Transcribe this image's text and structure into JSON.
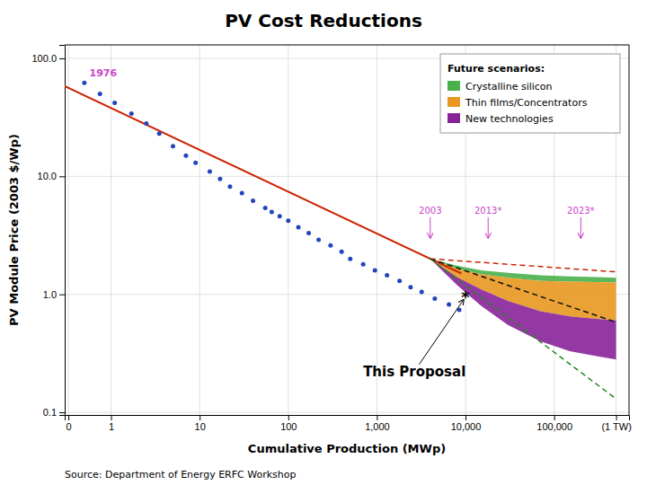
{
  "chart_data": {
    "type": "scatter",
    "title": "PV  Cost  Reductions",
    "source": "Source:  Department of Energy ERFC Workshop",
    "x_label": "Cumulative Production (MWp)",
    "y_label": "PV Module Price (2003 $/Wp)",
    "log": true,
    "grid": true,
    "legend": "upper right",
    "legend_title": "Future scenarios:",
    "xlim": [
      0.3,
      700000
    ],
    "ylim": [
      0.095,
      130
    ],
    "xticks": [
      {
        "value": 0.33,
        "label": "0"
      },
      1,
      10,
      100,
      {
        "value": 1000,
        "label": "1,000"
      },
      {
        "value": 10000,
        "label": "10,000"
      },
      {
        "value": 100000,
        "label": "100,000"
      },
      {
        "value": 500000,
        "label": "(1 TW)"
      }
    ],
    "yticks": [
      0.1,
      {
        "value": 1.0,
        "label": "1.0"
      },
      {
        "value": 10.0,
        "label": "10.0"
      },
      {
        "value": 100.0,
        "label": "100.0"
      }
    ],
    "series": [
      {
        "type": "scatter",
        "color": "#2244bb",
        "x": [
          0.5,
          0.75,
          1.1,
          1.7,
          2.5,
          3.5,
          5,
          7,
          9,
          13,
          17,
          22,
          30,
          40,
          55,
          65,
          80,
          100,
          130,
          170,
          220,
          300,
          400,
          500,
          700,
          950,
          1300,
          1800,
          2400,
          3200,
          4500,
          6500,
          8500
        ],
        "values": [
          62,
          50,
          42,
          34,
          28,
          23,
          18,
          15,
          13,
          11,
          9.5,
          8.2,
          7.2,
          6.2,
          5.4,
          5.0,
          4.6,
          4.2,
          3.7,
          3.3,
          2.9,
          2.6,
          2.3,
          2.0,
          1.8,
          1.6,
          1.45,
          1.3,
          1.15,
          1.05,
          0.92,
          0.82,
          0.74
        ]
      },
      {
        "type": "line",
        "color": "#cc2200",
        "x": [
          0.3,
          9000
        ],
        "values": [
          58.265,
          1.4998
        ]
      },
      {
        "type": "area",
        "name": "Crystalline silicon",
        "color": "#4ab04a",
        "x": [
          4000,
          8000,
          15000,
          30000,
          70000,
          150000,
          300000,
          500000
        ],
        "lower": [
          2.0,
          1.65,
          1.48,
          1.38,
          1.3,
          1.28,
          1.27,
          1.26
        ],
        "upper": [
          2.0,
          1.75,
          1.6,
          1.52,
          1.45,
          1.42,
          1.4,
          1.38
        ]
      },
      {
        "type": "area",
        "name": "Thin films/Concentrators",
        "color": "#e89820",
        "x": [
          4000,
          8000,
          15000,
          30000,
          70000,
          150000,
          300000,
          500000
        ],
        "lower": [
          2.0,
          1.4,
          1.1,
          0.88,
          0.72,
          0.65,
          0.62,
          0.6
        ],
        "upper": [
          2.0,
          1.65,
          1.48,
          1.38,
          1.3,
          1.28,
          1.27,
          1.26
        ]
      },
      {
        "type": "area",
        "name": "New technologies",
        "color": "#882299",
        "x": [
          4000,
          8000,
          15000,
          30000,
          70000,
          150000,
          300000,
          500000
        ],
        "lower": [
          2.0,
          1.2,
          0.8,
          0.55,
          0.4,
          0.33,
          0.3,
          0.28
        ],
        "upper": [
          2.0,
          1.4,
          1.1,
          0.88,
          0.72,
          0.65,
          0.62,
          0.6
        ]
      },
      {
        "type": "line",
        "line_style": "dashed",
        "color": "#cc2200",
        "x": [
          4000,
          500000
        ],
        "values": [
          2.0,
          1.55
        ]
      },
      {
        "type": "line",
        "line_style": "dashed",
        "color": "#111111",
        "x": [
          4000,
          500000
        ],
        "values": [
          2.0,
          0.58
        ]
      },
      {
        "type": "line",
        "line_style": "dashed",
        "color": "#228822",
        "x": [
          4000,
          500000
        ],
        "values": [
          2.0,
          0.13
        ]
      }
    ],
    "annotations": [
      {
        "text": "1976",
        "x": 0.52,
        "y": 70,
        "color": "#cc44cc"
      },
      {
        "text": "2003",
        "x": 4000,
        "y": 4.5,
        "arrow_y": 3.0,
        "color": "#cc44cc"
      },
      {
        "text": "2013*",
        "x": 18000,
        "y": 4.5,
        "arrow_y": 3.0,
        "color": "#cc44cc"
      },
      {
        "text": "2023*",
        "x": 200000,
        "y": 4.5,
        "arrow_y": 3.0,
        "color": "#cc44cc"
      },
      {
        "text": "*",
        "x": 10000,
        "y": 0.95,
        "color": "#000000"
      },
      {
        "text": "This Proposal",
        "x": 700,
        "y": 0.22,
        "color": "#000000",
        "arrow": {
          "x1": 3000,
          "y1": 0.255,
          "x2": 9500,
          "y2": 0.9
        }
      }
    ]
  }
}
